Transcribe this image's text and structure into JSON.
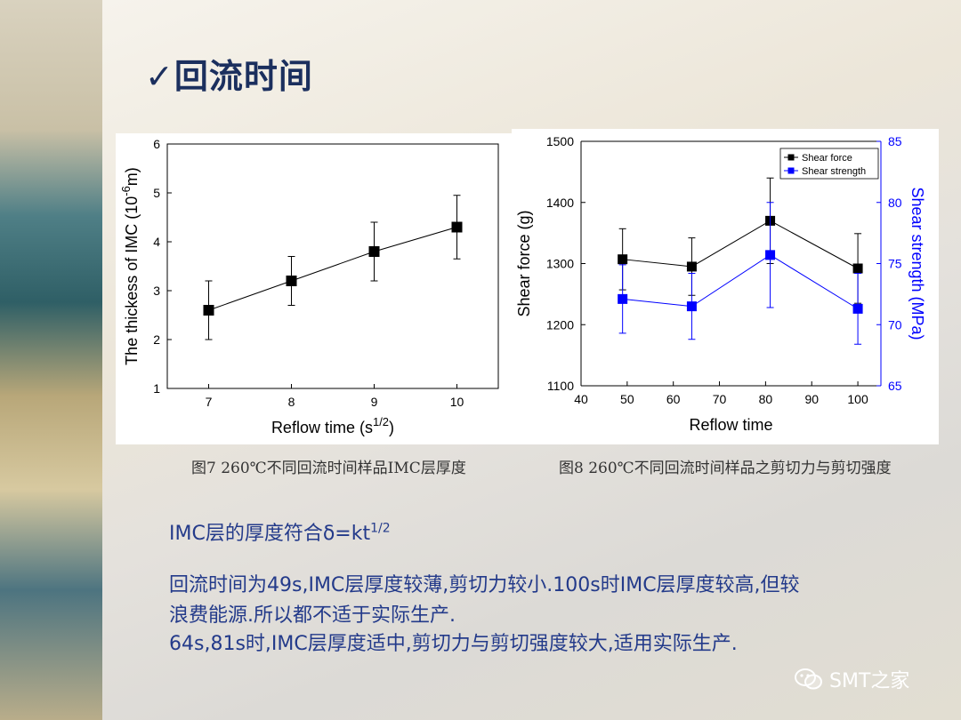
{
  "slide": {
    "title_check": "✓",
    "title": "回流时间",
    "formula_text": "IMC层的厚度符合δ=kt",
    "formula_sup": "1/2",
    "line1": "回流时间为49s,IMC层厚度较薄,剪切力较小.100s时IMC层厚度较高,但较",
    "line2": "浪费能源.所以都不适于实际生产.",
    "line3": "64s,81s时,IMC层厚度适中,剪切力与剪切强度较大,适用实际生产.",
    "watermark": "SMT之家",
    "watermark_icon": "wechat-icon"
  },
  "captions": {
    "fig7": "图7 260℃不同回流时间样品IMC层厚度",
    "fig8": "图8 260℃不同回流时间样品之剪切力与剪切强度"
  },
  "chart_data": [
    {
      "type": "scatter",
      "x": [
        7,
        8,
        9,
        10
      ],
      "series": [
        {
          "values": [
            2.6,
            3.2,
            3.8,
            4.3
          ],
          "err": [
            0.6,
            0.5,
            0.6,
            0.65
          ],
          "color": "#000000",
          "marker": "square"
        }
      ],
      "xlabel": "Reflow time (s",
      "xlabel_sup": "1/2",
      "xlabel_end": ")",
      "ylabel": "The thickess of IMC (10",
      "ylabel_sup": "-6",
      "ylabel_end": "m)",
      "xlim": [
        6.5,
        10.5
      ],
      "ylim": [
        1,
        6
      ],
      "xticks": [
        7,
        8,
        9,
        10
      ],
      "yticks": [
        1,
        2,
        3,
        4,
        5,
        6
      ],
      "grid": false
    },
    {
      "type": "line",
      "x": [
        49,
        64,
        81,
        100
      ],
      "series": [
        {
          "name": "Shear force",
          "values": [
            1307,
            1295,
            1370,
            1292
          ],
          "err": [
            50,
            47,
            70,
            57
          ],
          "axis": "left",
          "color": "#000000"
        },
        {
          "name": "Shear strength",
          "values": [
            72.1,
            71.5,
            75.7,
            71.3
          ],
          "err": [
            2.8,
            2.7,
            4.3,
            2.9
          ],
          "axis": "right",
          "color": "#0000ff"
        }
      ],
      "xlabel": "Reflow time",
      "ylabel": "Shear force (g)",
      "ylabel_right": "Shear strength (MPa)",
      "xlim": [
        40,
        105
      ],
      "ylim": [
        1100,
        1500
      ],
      "ylim_right": [
        65,
        85
      ],
      "xticks": [
        40,
        50,
        60,
        70,
        80,
        90,
        100
      ],
      "yticks": [
        1100,
        1200,
        1300,
        1400,
        1500
      ],
      "yticks_right": [
        65,
        70,
        75,
        80,
        85
      ],
      "legend": "top-right",
      "grid": false
    }
  ]
}
